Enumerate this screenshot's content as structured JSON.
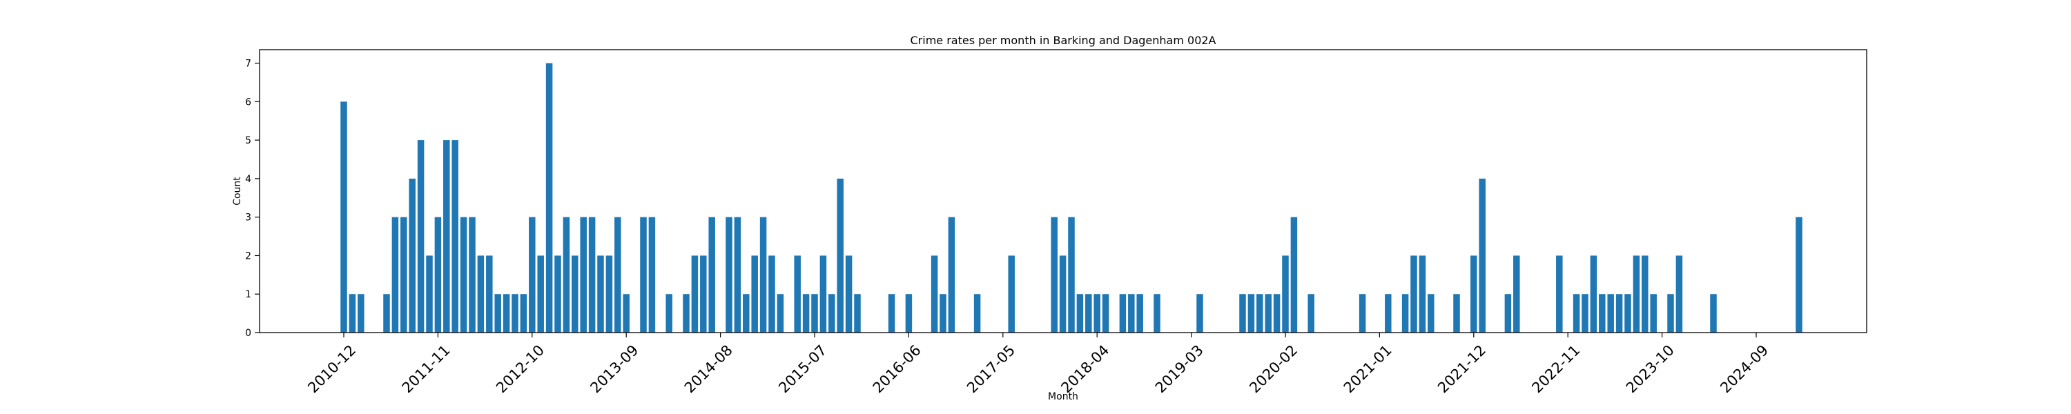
{
  "chart_data": {
    "type": "bar",
    "title": "Crime rates per month in Barking and Dagenham 002A",
    "xlabel": "Month",
    "ylabel": "Count",
    "ylim": [
      0,
      7.35
    ],
    "y_ticks": [
      0,
      1,
      2,
      3,
      4,
      5,
      6,
      7
    ],
    "x_tick_labels": [
      "2010-12",
      "2011-11",
      "2012-10",
      "2013-09",
      "2014-08",
      "2015-07",
      "2016-06",
      "2017-05",
      "2018-04",
      "2019-03",
      "2020-02",
      "2021-01",
      "2021-12",
      "2022-11",
      "2023-10",
      "2024-09"
    ],
    "bar_color": "#1f77b4",
    "start_month": "2010-12",
    "values": [
      6,
      1,
      1,
      0,
      0,
      1,
      3,
      3,
      4,
      5,
      2,
      3,
      5,
      5,
      3,
      3,
      2,
      2,
      1,
      1,
      1,
      1,
      3,
      2,
      7,
      2,
      3,
      2,
      3,
      3,
      2,
      2,
      3,
      1,
      0,
      3,
      3,
      0,
      1,
      0,
      1,
      2,
      2,
      3,
      0,
      3,
      3,
      1,
      2,
      3,
      2,
      1,
      0,
      2,
      1,
      1,
      2,
      1,
      4,
      2,
      1,
      0,
      0,
      0,
      1,
      0,
      1,
      0,
      0,
      2,
      1,
      3,
      0,
      0,
      1,
      0,
      0,
      0,
      2,
      0,
      0,
      0,
      0,
      3,
      2,
      3,
      1,
      1,
      1,
      1,
      0,
      1,
      1,
      1,
      0,
      1,
      0,
      0,
      0,
      0,
      1,
      0,
      0,
      0,
      0,
      1,
      1,
      1,
      1,
      1,
      2,
      3,
      0,
      1,
      0,
      0,
      0,
      0,
      0,
      1,
      0,
      0,
      1,
      0,
      1,
      2,
      2,
      1,
      0,
      0,
      1,
      0,
      2,
      4,
      0,
      0,
      1,
      2,
      0,
      0,
      0,
      0,
      2,
      0,
      1,
      1,
      2,
      1,
      1,
      1,
      1,
      2,
      2,
      1,
      0,
      1,
      2,
      0,
      0,
      0,
      1,
      0,
      0,
      0,
      0,
      0,
      0,
      0,
      0,
      0,
      3
    ]
  }
}
